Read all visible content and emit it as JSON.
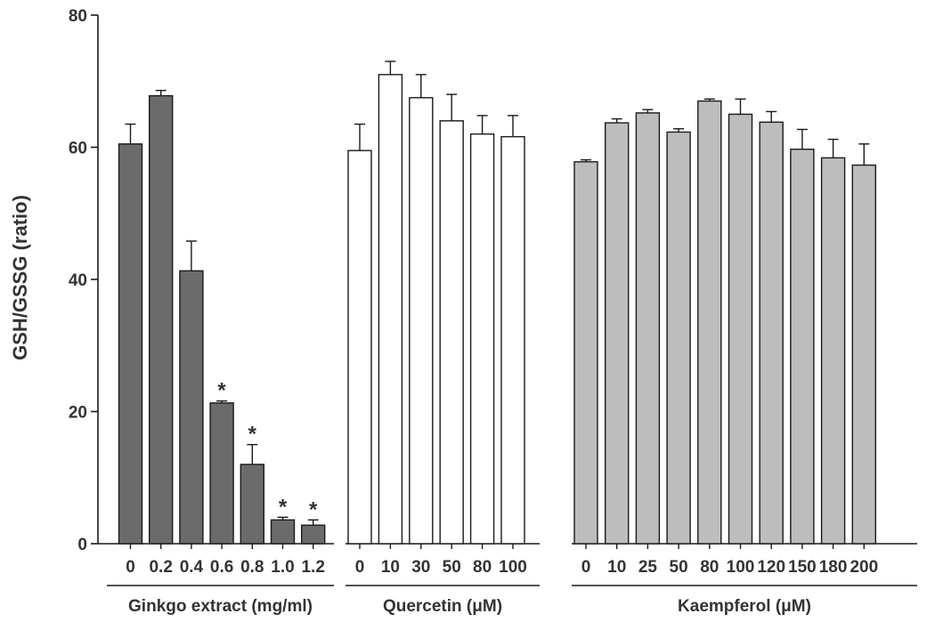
{
  "chart_data": {
    "type": "bar",
    "title": "",
    "ylabel": "GSH/GSSG (ratio)",
    "ylim": [
      0,
      80
    ],
    "yticks": [
      0,
      20,
      40,
      60,
      80
    ],
    "grid": false,
    "groups": [
      {
        "name": "Ginkgo extract (mg/ml)",
        "fill": "#6b6b6b",
        "bars": [
          {
            "category": "0",
            "value": 60.5,
            "error": 3.0,
            "marker": ""
          },
          {
            "category": "0.2",
            "value": 67.8,
            "error": 0.8,
            "marker": ""
          },
          {
            "category": "0.4",
            "value": 41.3,
            "error": 4.5,
            "marker": ""
          },
          {
            "category": "0.6",
            "value": 21.3,
            "error": 0.3,
            "marker": "*"
          },
          {
            "category": "0.8",
            "value": 12.0,
            "error": 3.0,
            "marker": "*"
          },
          {
            "category": "1.0",
            "value": 3.6,
            "error": 0.4,
            "marker": "*"
          },
          {
            "category": "1.2",
            "value": 2.8,
            "error": 0.8,
            "marker": "*"
          }
        ]
      },
      {
        "name": "Quercetin (μM)",
        "fill": "#ffffff",
        "bars": [
          {
            "category": "0",
            "value": 59.5,
            "error": 4.0,
            "marker": ""
          },
          {
            "category": "10",
            "value": 71.0,
            "error": 2.0,
            "marker": ""
          },
          {
            "category": "30",
            "value": 67.5,
            "error": 3.5,
            "marker": ""
          },
          {
            "category": "50",
            "value": 64.0,
            "error": 4.0,
            "marker": ""
          },
          {
            "category": "80",
            "value": 62.0,
            "error": 2.8,
            "marker": ""
          },
          {
            "category": "100",
            "value": 61.6,
            "error": 3.2,
            "marker": ""
          }
        ]
      },
      {
        "name": "Kaempferol (μM)",
        "fill": "#bdbdbd",
        "bars": [
          {
            "category": "0",
            "value": 57.8,
            "error": 0.3,
            "marker": ""
          },
          {
            "category": "10",
            "value": 63.7,
            "error": 0.6,
            "marker": ""
          },
          {
            "category": "25",
            "value": 65.2,
            "error": 0.5,
            "marker": ""
          },
          {
            "category": "50",
            "value": 62.3,
            "error": 0.5,
            "marker": ""
          },
          {
            "category": "80",
            "value": 67.0,
            "error": 0.3,
            "marker": ""
          },
          {
            "category": "100",
            "value": 65.0,
            "error": 2.3,
            "marker": ""
          },
          {
            "category": "120",
            "value": 63.8,
            "error": 1.6,
            "marker": ""
          },
          {
            "category": "150",
            "value": 59.7,
            "error": 3.0,
            "marker": ""
          },
          {
            "category": "180",
            "value": 58.4,
            "error": 2.8,
            "marker": ""
          },
          {
            "category": "200",
            "value": 57.3,
            "error": 3.2,
            "marker": ""
          }
        ]
      }
    ],
    "colors": {
      "stroke": "#1a1a1a",
      "text": "#333333"
    }
  }
}
